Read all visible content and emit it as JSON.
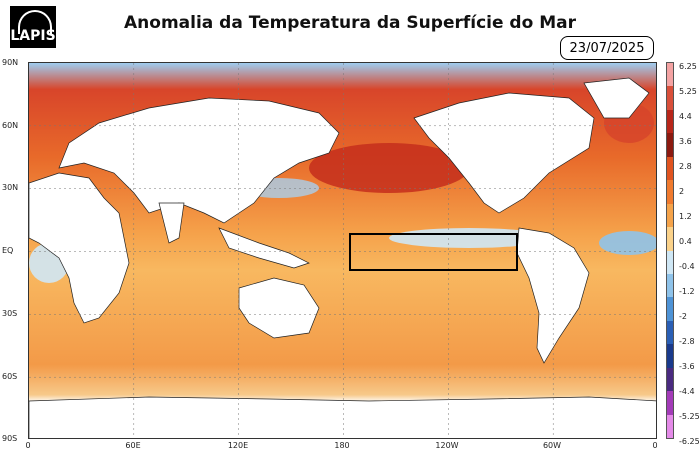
{
  "logo": {
    "text": "LAPIS"
  },
  "title": "Anomalia da Temperatura da Superfície do Mar",
  "date": "23/07/2025",
  "map": {
    "lat_labels": [
      "90N",
      "60N",
      "30N",
      "EQ",
      "30S",
      "60S",
      "90S"
    ],
    "lon_labels": [
      "0",
      "60E",
      "120E",
      "180",
      "120W",
      "60W",
      "0"
    ],
    "highlight_box": {
      "lon_range": [
        "~170W",
        "~80W"
      ],
      "lat_range": [
        "~5N",
        "~5S"
      ]
    }
  },
  "colorbar": {
    "labels": [
      "6.25",
      "5.25",
      "4.4",
      "3.6",
      "2.8",
      "2",
      "1.2",
      "0.4",
      "-0.4",
      "-1.2",
      "-2",
      "-2.8",
      "-3.6",
      "-4.4",
      "-5.25",
      "-6.25"
    ],
    "colors": [
      "#f4a3a3",
      "#d94f3a",
      "#b8261a",
      "#8c1a10",
      "#e0531f",
      "#f07a2e",
      "#f5a34a",
      "#fbd28a",
      "#cfe7f5",
      "#8fc3ea",
      "#4e93d6",
      "#2a5fb5",
      "#1a3a8c",
      "#4a2a80",
      "#a33bb8",
      "#e48ae8"
    ]
  }
}
